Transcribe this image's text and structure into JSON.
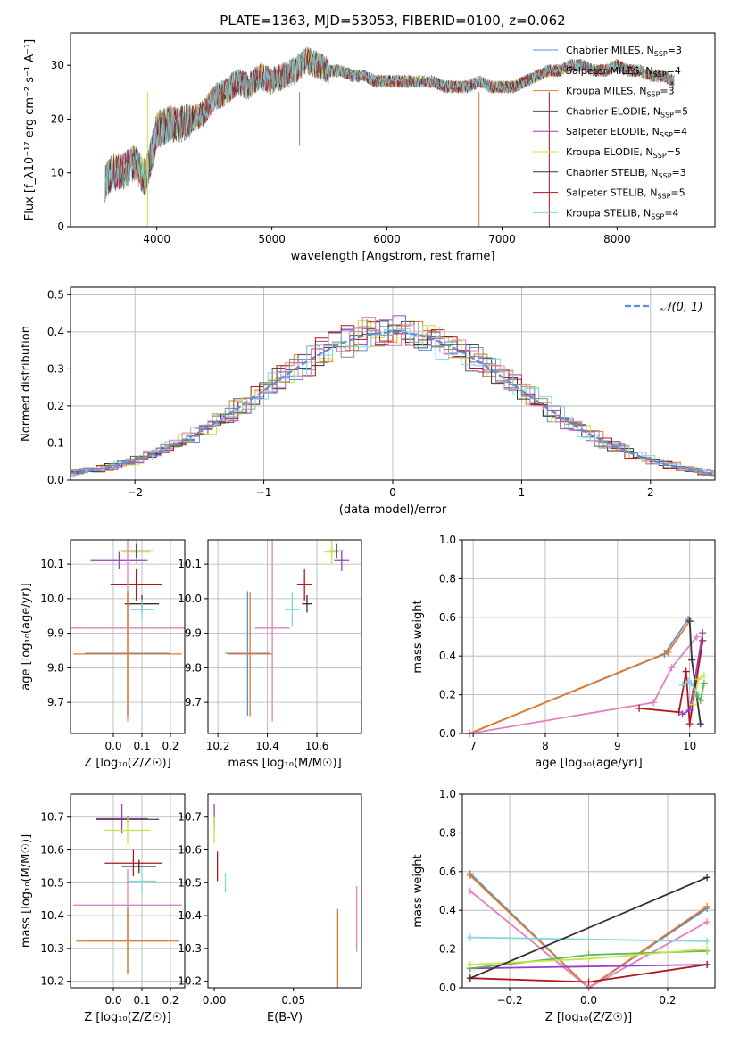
{
  "figure_title": "PLATE=1363, MJD=53053, FIBERID=0100, z=0.062",
  "colors": {
    "Chabrier MILES": "#5b8fd9",
    "Salpeter MILES": "#8a8a8a",
    "Kroupa MILES": "#e07b2a",
    "Chabrier ELODIE": "#555555",
    "Salpeter ELODIE": "#9b3fbf",
    "Kroupa ELODIE": "#c8e04a",
    "Chabrier STELIB": "#333333",
    "Salpeter STELIB": "#b0161c",
    "Kroupa STELIB": "#7fd6dd",
    "Pink": "#e37fbf",
    "Green": "#5cb85c",
    "gaussian": "#5b8fd9"
  },
  "chart_data": [
    {
      "id": "spectrum",
      "type": "line",
      "title": "PLATE=1363, MJD=53053, FIBERID=0100, z=0.062",
      "xlabel": "wavelength [Angstrom, rest frame]",
      "ylabel": "Flux [f_λ10⁻¹⁷ erg cm⁻² s⁻¹ A⁻¹]",
      "xlim": [
        3250,
        8850
      ],
      "ylim": [
        0,
        36
      ],
      "xticks": [
        "4000",
        "5000",
        "6000",
        "7000",
        "8000"
      ],
      "yticks": [
        "0",
        "10",
        "20",
        "30"
      ],
      "grid": false,
      "legend_position": "top-right",
      "legend": [
        {
          "label": "Chabrier MILES, N",
          "sub": "SSP",
          "suffix": "=3",
          "color": "#5b8fd9"
        },
        {
          "label": "Salpeter MILES, N",
          "sub": "SSP",
          "suffix": "=4",
          "color": "#8a8a8a"
        },
        {
          "label": "Kroupa MILES, N",
          "sub": "SSP",
          "suffix": "=3",
          "color": "#e07b2a"
        },
        {
          "label": "Chabrier ELODIE, N",
          "sub": "SSP",
          "suffix": "=5",
          "color": "#555555"
        },
        {
          "label": "Salpeter ELODIE, N",
          "sub": "SSP",
          "suffix": "=4",
          "color": "#9b3fbf"
        },
        {
          "label": "Kroupa ELODIE, N",
          "sub": "SSP",
          "suffix": "=5",
          "color": "#c8e04a"
        },
        {
          "label": "Chabrier STELIB, N",
          "sub": "SSP",
          "suffix": "=3",
          "color": "#333333"
        },
        {
          "label": "Salpeter STELIB, N",
          "sub": "SSP",
          "suffix": "=5",
          "color": "#b0161c"
        },
        {
          "label": "Kroupa STELIB, N",
          "sub": "SSP",
          "suffix": "=4",
          "color": "#7fd6dd"
        }
      ],
      "x": [
        3550,
        3600,
        3700,
        3800,
        3900,
        3950,
        4000,
        4100,
        4200,
        4300,
        4400,
        4500,
        4600,
        4700,
        4800,
        4900,
        5000,
        5100,
        5200,
        5300,
        5400,
        5500,
        5600,
        5700,
        5800,
        5900,
        6000,
        6100,
        6200,
        6300,
        6400,
        6500,
        6600,
        6700,
        6800,
        6900,
        7000,
        7100,
        7200,
        7300,
        7400,
        7500,
        7600,
        7700,
        7800,
        7900,
        8000,
        8100,
        8200,
        8300,
        8400,
        8500
      ],
      "y": [
        8,
        10,
        10,
        12,
        9,
        13,
        18,
        19,
        19,
        20,
        21,
        24,
        25,
        27,
        26,
        28,
        27,
        28,
        29,
        31,
        30,
        29,
        29,
        28,
        28,
        27,
        27,
        27,
        27,
        27,
        27,
        26,
        26,
        26,
        27,
        26,
        26,
        26,
        27,
        28,
        29,
        29,
        30,
        30,
        29,
        29,
        30,
        29,
        29,
        28,
        28,
        27
      ]
    },
    {
      "id": "residuals",
      "type": "step",
      "xlabel": "(data-model)/error",
      "ylabel": "Normed distribution",
      "xlim": [
        -2.5,
        2.5
      ],
      "ylim": [
        0,
        0.52
      ],
      "xticks": [
        "−2",
        "−1",
        "0",
        "1",
        "2"
      ],
      "yticks": [
        "0.0",
        "0.1",
        "0.2",
        "0.3",
        "0.4",
        "0.5"
      ],
      "grid": true,
      "legend_position": "top-right",
      "legend": [
        {
          "label": "𝒩(0, 1)",
          "color": "#5b8fd9"
        }
      ],
      "bin_width": 0.1
    },
    {
      "id": "age-vs-Z",
      "type": "scatter",
      "xlabel": "Z [log₁₀(Z/Z☉)]",
      "ylabel": "age  [log₁₀(age/yr)]",
      "xlim": [
        -0.15,
        0.25
      ],
      "ylim": [
        9.61,
        10.17
      ],
      "xticks": [
        "0.0",
        "0.1",
        "0.2"
      ],
      "yticks": [
        "9.7",
        "9.8",
        "9.9",
        "10.0",
        "10.1"
      ],
      "grid": true,
      "points": [
        {
          "series": "Kroupa ELODIE",
          "x": 0.08,
          "y": 10.135,
          "xerr": 0.05,
          "yerr": 0.035
        },
        {
          "series": "Chabrier ELODIE",
          "x": 0.08,
          "y": 10.138,
          "xerr": 0.06,
          "yerr": 0.02
        },
        {
          "series": "Salpeter ELODIE",
          "x": 0.02,
          "y": 10.11,
          "xerr": 0.1,
          "yerr": 0.025
        },
        {
          "series": "Salpeter STELIB",
          "x": 0.08,
          "y": 10.04,
          "xerr": 0.09,
          "yerr": 0.045
        },
        {
          "series": "Chabrier STELIB",
          "x": 0.1,
          "y": 9.985,
          "xerr": 0.06,
          "yerr": 0.025
        },
        {
          "series": "Kroupa STELIB",
          "x": 0.1,
          "y": 9.968,
          "xerr": 0.04,
          "yerr": 0.03
        },
        {
          "series": "Pink",
          "x": 0.05,
          "y": 9.915,
          "xerr": 0.2,
          "yerr": 0.27
        },
        {
          "series": "Chabrier MILES",
          "x": 0.05,
          "y": 9.842,
          "xerr": 0.15,
          "yerr": 0.18
        },
        {
          "series": "Kroupa MILES",
          "x": 0.05,
          "y": 9.84,
          "xerr": 0.19,
          "yerr": 0.18
        }
      ]
    },
    {
      "id": "age-vs-mass",
      "type": "scatter",
      "xlabel": "mass [log₁₀(M/M☉)]",
      "ylabel": "",
      "xlim": [
        10.16,
        10.78
      ],
      "ylim": [
        9.61,
        10.17
      ],
      "xticks": [
        "10.2",
        "10.4",
        "10.6"
      ],
      "yticks": [
        "9.7",
        "9.8",
        "9.9",
        "10.0",
        "10.1"
      ],
      "grid": true,
      "points": [
        {
          "series": "Kroupa ELODIE",
          "x": 10.66,
          "y": 10.135,
          "xerr": 0.03,
          "yerr": 0.035
        },
        {
          "series": "Chabrier ELODIE",
          "x": 10.68,
          "y": 10.138,
          "xerr": 0.03,
          "yerr": 0.02
        },
        {
          "series": "Salpeter ELODIE",
          "x": 10.7,
          "y": 10.11,
          "xerr": 0.03,
          "yerr": 0.03
        },
        {
          "series": "Salpeter STELIB",
          "x": 10.55,
          "y": 10.04,
          "xerr": 0.03,
          "yerr": 0.045
        },
        {
          "series": "Chabrier STELIB",
          "x": 10.56,
          "y": 9.985,
          "xerr": 0.02,
          "yerr": 0.025
        },
        {
          "series": "Kroupa STELIB",
          "x": 10.5,
          "y": 9.968,
          "xerr": 0.03,
          "yerr": 0.05
        },
        {
          "series": "Pink",
          "x": 10.42,
          "y": 9.915,
          "xerr": 0.07,
          "yerr": 0.27
        },
        {
          "series": "Chabrier MILES",
          "x": 10.32,
          "y": 9.842,
          "xerr": 0.09,
          "yerr": 0.18
        },
        {
          "series": "Kroupa MILES",
          "x": 10.33,
          "y": 9.84,
          "xerr": 0.09,
          "yerr": 0.18
        }
      ]
    },
    {
      "id": "mass-weight-vs-age",
      "type": "line",
      "xlabel": "age  [log₁₀(age/yr)]",
      "ylabel": "mass weight",
      "xlim": [
        6.85,
        10.35
      ],
      "ylim": [
        0,
        1
      ],
      "xticks": [
        "7",
        "8",
        "9",
        "10"
      ],
      "yticks": [
        "0.0",
        "0.2",
        "0.4",
        "0.6",
        "0.8",
        "1.0"
      ],
      "grid": true,
      "series": [
        {
          "name": "Chabrier MILES",
          "x": [
            6.95,
            9.65,
            9.98
          ],
          "y": [
            0.0,
            0.41,
            0.59
          ]
        },
        {
          "name": "Kroupa MILES",
          "x": [
            6.95,
            9.7,
            10.0
          ],
          "y": [
            0.0,
            0.42,
            0.58
          ]
        },
        {
          "name": "Pink",
          "x": [
            6.95,
            9.5,
            9.75,
            10.1
          ],
          "y": [
            0.0,
            0.16,
            0.34,
            0.5
          ]
        },
        {
          "name": "Salpeter STELIB",
          "x": [
            9.3,
            9.85,
            9.95,
            10.0,
            10.18
          ],
          "y": [
            0.13,
            0.11,
            0.32,
            0.05,
            0.48
          ]
        },
        {
          "name": "Salpeter ELODIE",
          "x": [
            9.9,
            10.0,
            10.18
          ],
          "y": [
            0.1,
            0.12,
            0.52
          ]
        },
        {
          "name": "Chabrier STELIB",
          "x": [
            10.0,
            10.03,
            10.15
          ],
          "y": [
            0.58,
            0.38,
            0.05
          ]
        },
        {
          "name": "Kroupa STELIB",
          "x": [
            9.9,
            9.98,
            10.02,
            10.12
          ],
          "y": [
            0.25,
            0.27,
            0.26,
            0.2
          ]
        },
        {
          "name": "Kroupa ELODIE",
          "x": [
            10.05,
            10.12,
            10.2
          ],
          "y": [
            0.15,
            0.28,
            0.3
          ]
        },
        {
          "name": "Green",
          "x": [
            10.1,
            10.15,
            10.2
          ],
          "y": [
            0.2,
            0.17,
            0.26
          ]
        }
      ]
    },
    {
      "id": "mass-vs-Z",
      "type": "scatter",
      "xlabel": "Z [log₁₀(Z/Z☉)]",
      "ylabel": "mass [log₁₀(M/M☉)]",
      "xlim": [
        -0.15,
        0.25
      ],
      "ylim": [
        10.18,
        10.77
      ],
      "xticks": [
        "0.0",
        "0.1",
        "0.2"
      ],
      "yticks": [
        "10.2",
        "10.3",
        "10.4",
        "10.5",
        "10.6",
        "10.7"
      ],
      "grid": true,
      "points": [
        {
          "series": "Salpeter ELODIE",
          "x": 0.03,
          "y": 10.695,
          "xerr": 0.09,
          "yerr": 0.045
        },
        {
          "series": "Chabrier ELODIE",
          "x": 0.05,
          "y": 10.693,
          "xerr": 0.11,
          "yerr": 0.01
        },
        {
          "series": "Kroupa ELODIE",
          "x": 0.05,
          "y": 10.66,
          "xerr": 0.08,
          "yerr": 0.04
        },
        {
          "series": "Salpeter STELIB",
          "x": 0.07,
          "y": 10.56,
          "xerr": 0.1,
          "yerr": 0.04
        },
        {
          "series": "Chabrier STELIB",
          "x": 0.09,
          "y": 10.55,
          "xerr": 0.06,
          "yerr": 0.02
        },
        {
          "series": "Kroupa STELIB",
          "x": 0.1,
          "y": 10.505,
          "xerr": 0.05,
          "yerr": 0.04
        },
        {
          "series": "Pink",
          "x": 0.05,
          "y": 10.432,
          "xerr": 0.19,
          "yerr": 0.11
        },
        {
          "series": "Chabrier MILES",
          "x": 0.05,
          "y": 10.325,
          "xerr": 0.14,
          "yerr": 0.1
        },
        {
          "series": "Kroupa MILES",
          "x": 0.05,
          "y": 10.322,
          "xerr": 0.18,
          "yerr": 0.1
        }
      ]
    },
    {
      "id": "mass-vs-EBV",
      "type": "scatter",
      "xlabel": "E(B-V)",
      "ylabel": "",
      "xlim": [
        -0.004,
        0.093
      ],
      "ylim": [
        10.18,
        10.77
      ],
      "xticks": [
        "0.00",
        "0.05"
      ],
      "yticks": [
        "10.2",
        "10.3",
        "10.4",
        "10.5",
        "10.6",
        "10.7"
      ],
      "grid": false,
      "points": [
        {
          "series": "Salpeter ELODIE",
          "x": 0.0,
          "y": 10.7,
          "xerr": 0.0,
          "yerr": 0.04
        },
        {
          "series": "Kroupa ELODIE",
          "x": 0.0,
          "y": 10.66,
          "xerr": 0.0,
          "yerr": 0.04
        },
        {
          "series": "Salpeter STELIB",
          "x": 0.002,
          "y": 10.55,
          "xerr": 0.0,
          "yerr": 0.045
        },
        {
          "series": "Kroupa STELIB",
          "x": 0.007,
          "y": 10.5,
          "xerr": 0.0,
          "yerr": 0.03
        },
        {
          "series": "Pink",
          "x": 0.09,
          "y": 10.39,
          "xerr": 0.0,
          "yerr": 0.1
        },
        {
          "series": "Kroupa MILES",
          "x": 0.078,
          "y": 10.3,
          "xerr": 0.0,
          "yerr": 0.12
        }
      ]
    },
    {
      "id": "mass-weight-vs-Z",
      "type": "line",
      "xlabel": "Z [log₁₀(Z/Z☉)]",
      "ylabel": "mass weight",
      "xlim": [
        -0.32,
        0.32
      ],
      "ylim": [
        0,
        1
      ],
      "xticks": [
        "−0.2",
        "0.0",
        "0.2"
      ],
      "yticks": [
        "0.0",
        "0.2",
        "0.4",
        "0.6",
        "0.8",
        "1.0"
      ],
      "grid": true,
      "series": [
        {
          "name": "Chabrier MILES",
          "x": [
            -0.3,
            0.0,
            0.3
          ],
          "y": [
            0.59,
            0.0,
            0.41
          ]
        },
        {
          "name": "Kroupa MILES",
          "x": [
            -0.3,
            0.0,
            0.3
          ],
          "y": [
            0.58,
            0.0,
            0.42
          ]
        },
        {
          "name": "Pink",
          "x": [
            -0.3,
            0.0,
            0.3
          ],
          "y": [
            0.5,
            0.0,
            0.34
          ]
        },
        {
          "name": "Salpeter ELODIE",
          "x": [
            -0.3,
            0.3
          ],
          "y": [
            0.1,
            0.12
          ]
        },
        {
          "name": "Kroupa STELIB",
          "x": [
            -0.3,
            0.3
          ],
          "y": [
            0.26,
            0.24
          ]
        },
        {
          "name": "Green",
          "x": [
            -0.3,
            0.0,
            0.3
          ],
          "y": [
            0.1,
            0.17,
            0.19
          ]
        },
        {
          "name": "Kroupa ELODIE",
          "x": [
            -0.3,
            0.0,
            0.3
          ],
          "y": [
            0.12,
            0.15,
            0.2
          ]
        },
        {
          "name": "Salpeter STELIB",
          "x": [
            -0.3,
            0.0,
            0.3
          ],
          "y": [
            0.05,
            0.03,
            0.12
          ]
        },
        {
          "name": "Chabrier STELIB",
          "x": [
            -0.3,
            0.3
          ],
          "y": [
            0.05,
            0.57
          ]
        }
      ]
    }
  ]
}
